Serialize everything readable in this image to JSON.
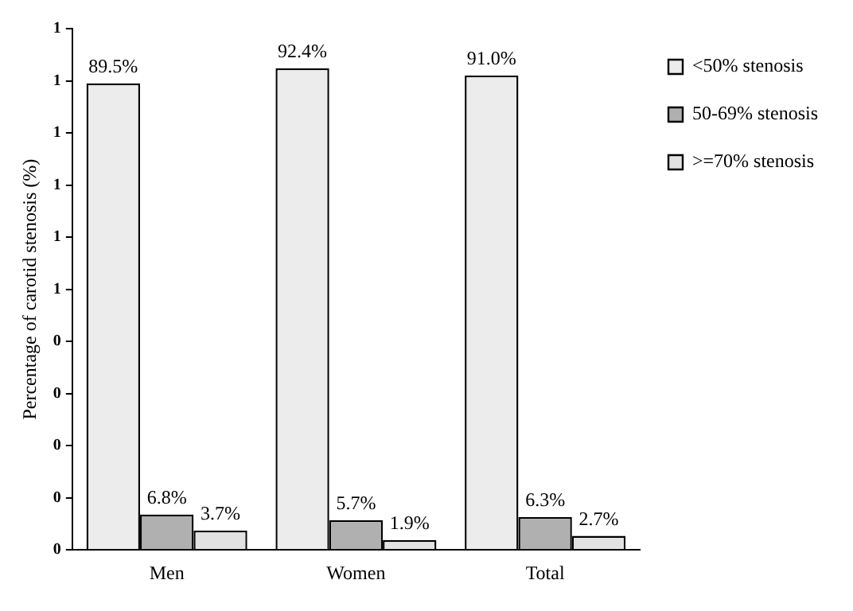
{
  "chart_data": {
    "type": "bar",
    "ylabel": "Percentage of carotid stenosis (%)",
    "categories": [
      "Men",
      "Women",
      "Total"
    ],
    "series": [
      {
        "name": "<50% stenosis",
        "color": "#ececec",
        "values": [
          0.895,
          0.924,
          0.91
        ],
        "value_labels": [
          "89.5%",
          "92.4%",
          "91.0%"
        ]
      },
      {
        "name": "50-69% stenosis",
        "color": "#b0b0b0",
        "values": [
          0.068,
          0.057,
          0.063
        ],
        "value_labels": [
          "6.8%",
          "5.7%",
          "6.3%"
        ]
      },
      {
        "name": ">=70% stenosis",
        "color": "#e2e2e2",
        "values": [
          0.037,
          0.019,
          0.027
        ],
        "value_labels": [
          "3.7%",
          "1.9%",
          "2.7%"
        ]
      }
    ],
    "ylim": [
      0,
      1
    ],
    "yticks": [
      {
        "value": 0,
        "label": "0"
      },
      {
        "value": 0.1,
        "label": "0"
      },
      {
        "value": 0.2,
        "label": "0"
      },
      {
        "value": 0.3,
        "label": "0"
      },
      {
        "value": 0.4,
        "label": "0"
      },
      {
        "value": 0.5,
        "label": "1"
      },
      {
        "value": 0.6,
        "label": "1"
      },
      {
        "value": 0.7,
        "label": "1"
      },
      {
        "value": 0.8,
        "label": "1"
      },
      {
        "value": 0.9,
        "label": "1"
      },
      {
        "value": 1,
        "label": "1"
      }
    ],
    "grid": false,
    "legend": "top right"
  }
}
